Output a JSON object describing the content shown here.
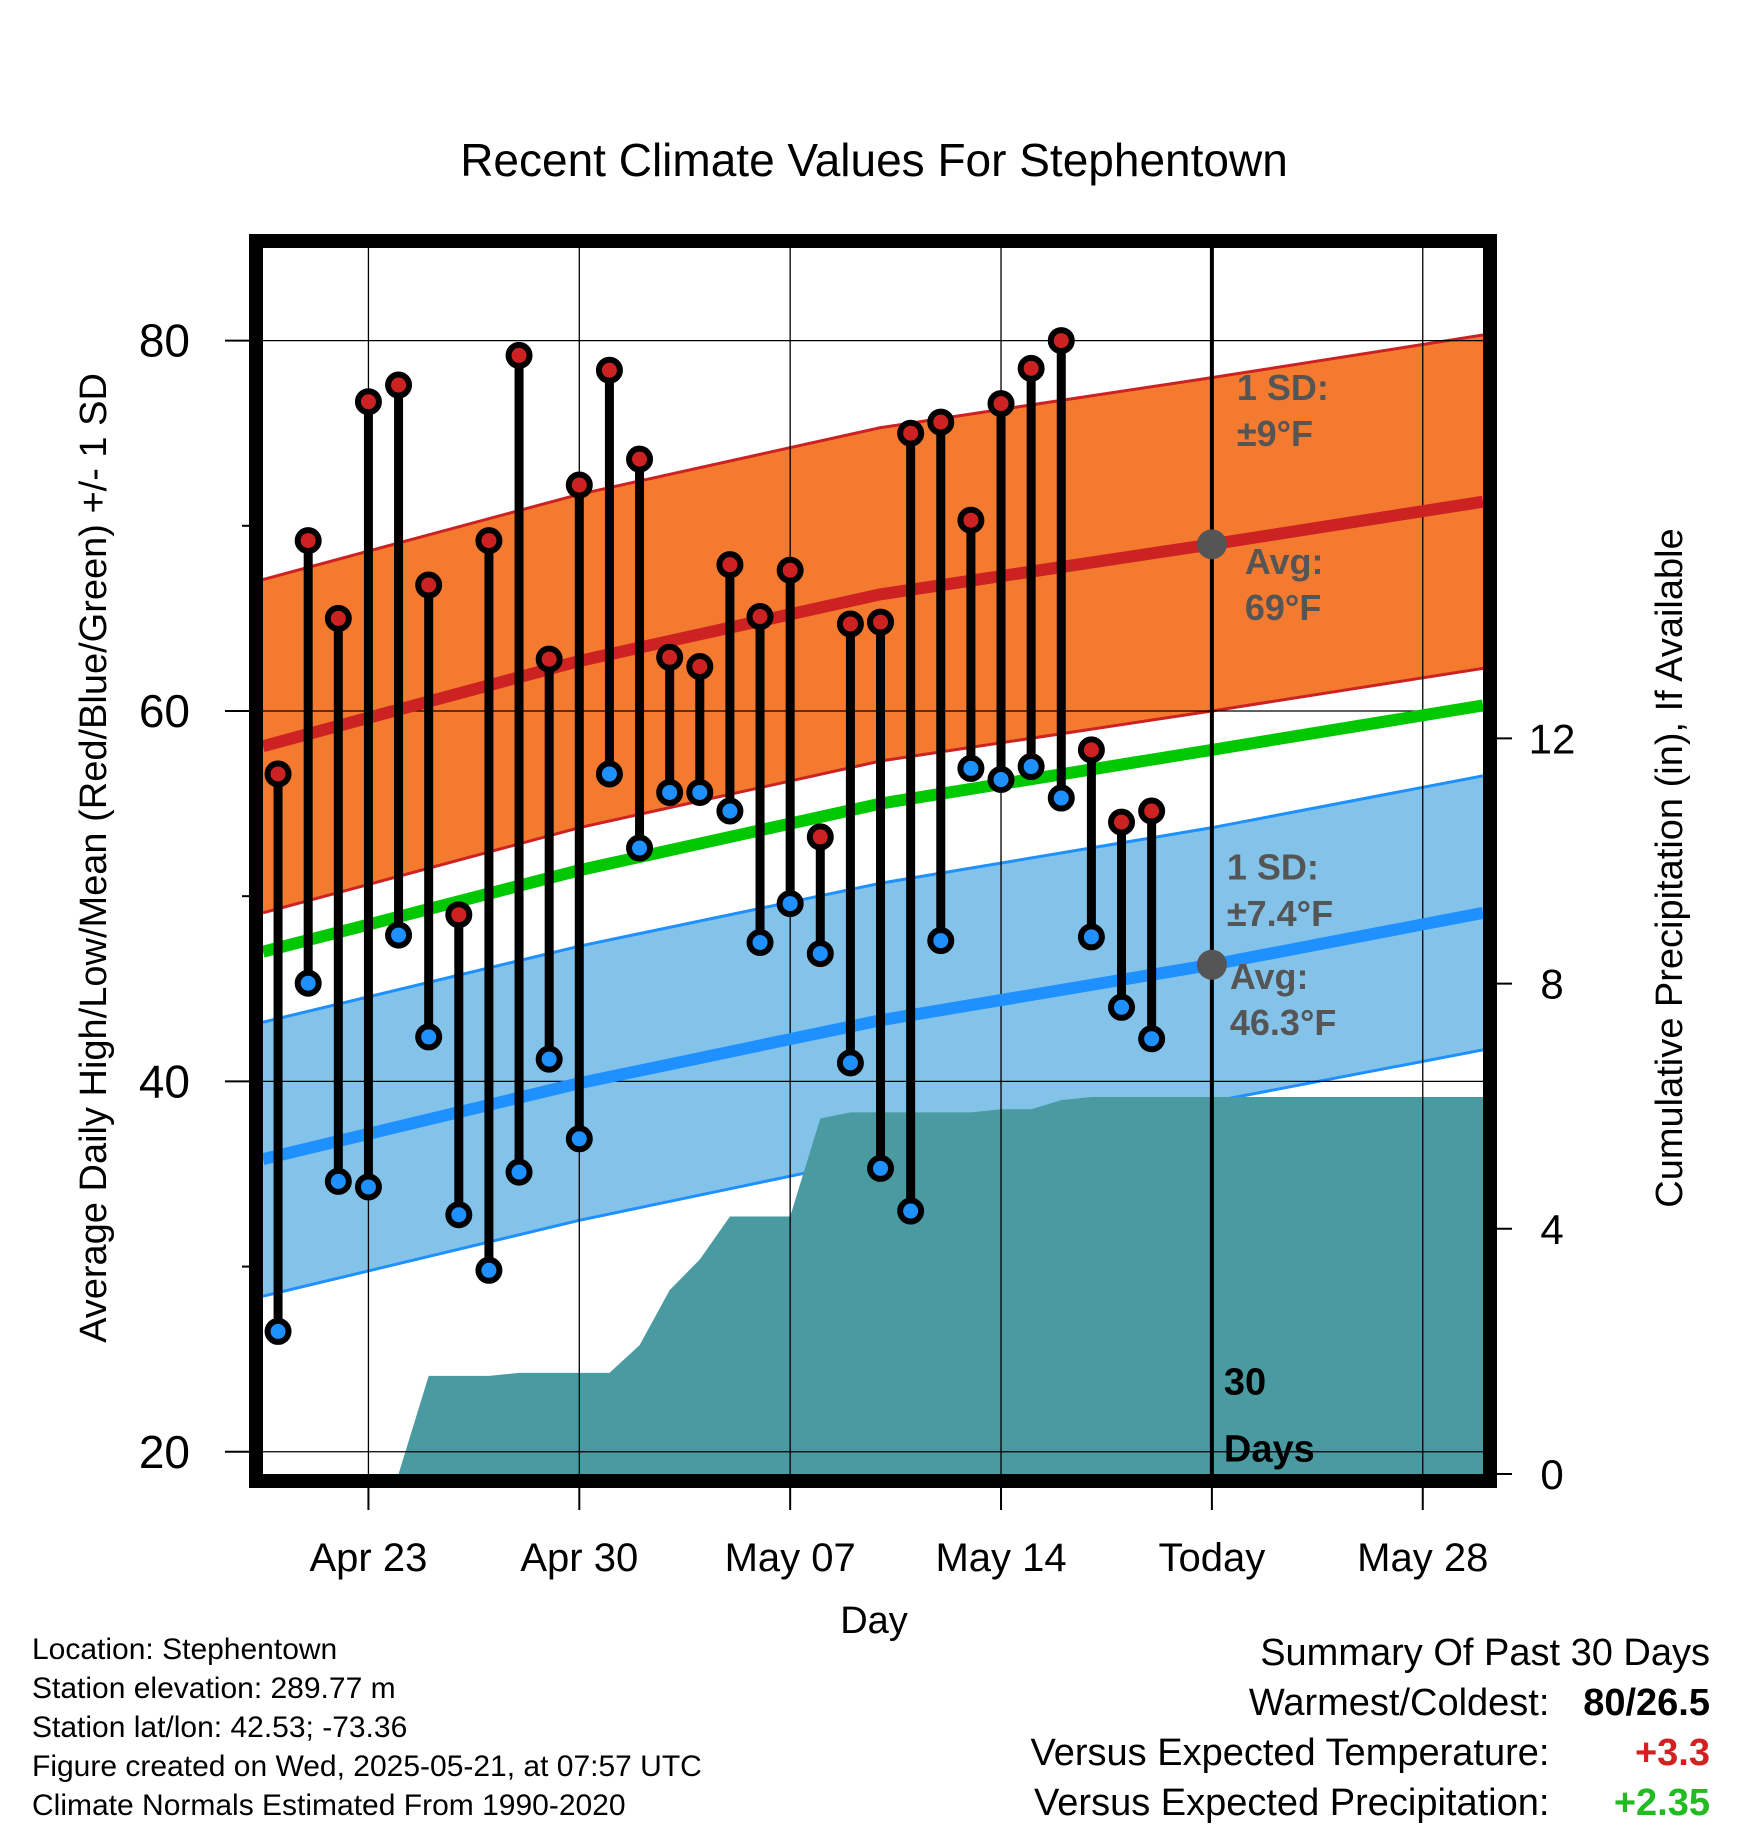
{
  "chart_data": {
    "type": "line",
    "title": "Recent Climate Values For Stephentown",
    "xlabel": "Day",
    "ylabel_left": "Average Daily High/Low/Mean (Red/Blue/Green) +/- 1 SD",
    "ylabel_right": "Cumulative Precipitation (in), If Available",
    "x_tick_labels": [
      "Apr 23",
      "Apr 30",
      "May 07",
      "May 14",
      "Today",
      "May 28"
    ],
    "x_tick_days": [
      3,
      10,
      17,
      24,
      31,
      38
    ],
    "xlim_days": [
      -0.5,
      40
    ],
    "ylim_left": [
      18.8,
      85
    ],
    "yticks_left": [
      20,
      40,
      60,
      80
    ],
    "ylim_right": [
      0,
      20
    ],
    "yticks_right": [
      0,
      4,
      8,
      12
    ],
    "today_day": 31,
    "today_label": [
      "30",
      "Days"
    ],
    "colors": {
      "high": "#cc2222",
      "low": "#1e90ff",
      "mean": "#00c800",
      "high_band": "#f47a30",
      "low_band": "#84c3e9",
      "precip": "#4a9aa2"
    },
    "normals": {
      "days": [
        -0.5,
        10,
        20,
        31,
        40
      ],
      "high_mean": [
        58.1,
        62.7,
        66.3,
        69,
        71.3
      ],
      "high_sd": 9,
      "low_mean": [
        35.8,
        39.9,
        43.3,
        46.3,
        49.1
      ],
      "low_sd": 7.4,
      "daily_mean": [
        47,
        51.4,
        55,
        57.9,
        60.3
      ]
    },
    "series": [
      {
        "name": "High",
        "days": [
          0,
          1,
          2,
          3,
          4,
          5,
          6,
          7,
          8,
          9,
          10,
          11,
          12,
          13,
          14,
          15,
          16,
          17,
          18,
          19,
          20,
          21,
          22,
          23,
          24,
          25,
          26,
          27,
          28,
          29
        ],
        "values": [
          56.6,
          69.2,
          65,
          76.7,
          77.6,
          66.8,
          49,
          69.2,
          79.2,
          62.8,
          72.2,
          78.4,
          73.6,
          62.9,
          62.4,
          67.9,
          65.1,
          67.6,
          53.2,
          64.7,
          64.8,
          75,
          75.6,
          70.3,
          76.6,
          78.5,
          80,
          57.9,
          54,
          54.6
        ]
      },
      {
        "name": "Low",
        "days": [
          0,
          1,
          2,
          3,
          4,
          5,
          6,
          7,
          8,
          9,
          10,
          11,
          12,
          13,
          14,
          15,
          16,
          17,
          18,
          19,
          20,
          21,
          22,
          23,
          24,
          25,
          26,
          27,
          28,
          29
        ],
        "values": [
          26.5,
          45.3,
          34.6,
          34.3,
          47.9,
          42.4,
          32.8,
          29.8,
          35.1,
          41.2,
          36.9,
          56.6,
          52.6,
          55.6,
          55.6,
          54.6,
          47.5,
          49.6,
          46.9,
          41,
          35.3,
          33,
          47.6,
          56.9,
          56.3,
          57,
          55.3,
          47.8,
          44,
          42.3
        ]
      },
      {
        "name": "Cumulative Precipitation",
        "axis": "right",
        "days": [
          4,
          5,
          6,
          7,
          8,
          9,
          10,
          11,
          12,
          13,
          14,
          15,
          16,
          17,
          18,
          19,
          20,
          21,
          22,
          23,
          24,
          25,
          26,
          27,
          28,
          29,
          31,
          40
        ],
        "values": [
          0,
          1.6,
          1.6,
          1.6,
          1.65,
          1.65,
          1.65,
          1.65,
          2.1,
          3,
          3.5,
          4.2,
          4.2,
          4.2,
          5.8,
          5.9,
          5.9,
          5.9,
          5.9,
          5.9,
          5.95,
          5.95,
          6.1,
          6.15,
          6.15,
          6.15,
          6.15,
          6.15
        ]
      }
    ],
    "annotations": {
      "high_sd_label": [
        "1 SD:",
        "±9°F"
      ],
      "high_avg_label": [
        "Avg:",
        "69°F"
      ],
      "high_avg_value": 69,
      "low_sd_label": [
        "1 SD:",
        "±7.4°F"
      ],
      "low_avg_label": [
        "Avg:",
        "46.3°F"
      ],
      "low_avg_value": 46.3
    }
  },
  "footer": {
    "location": "Location: Stephentown",
    "elevation": "Station elevation: 289.77 m",
    "latlon": "Station lat/lon: 42.53; -73.36",
    "created": "Figure created on Wed, 2025-05-21, at 07:57 UTC",
    "normals": "Climate Normals Estimated From 1990-2020"
  },
  "summary": {
    "title": "Summary Of Past 30 Days",
    "warm_cold_label": "Warmest/Coldest:",
    "warm_cold_value": "80/26.5",
    "temp_label": "Versus Expected Temperature:",
    "temp_value": "+3.3",
    "temp_color": "#d42020",
    "precip_label": "Versus Expected Precipitation:",
    "precip_value": "+2.35",
    "precip_color": "#22bb22"
  }
}
